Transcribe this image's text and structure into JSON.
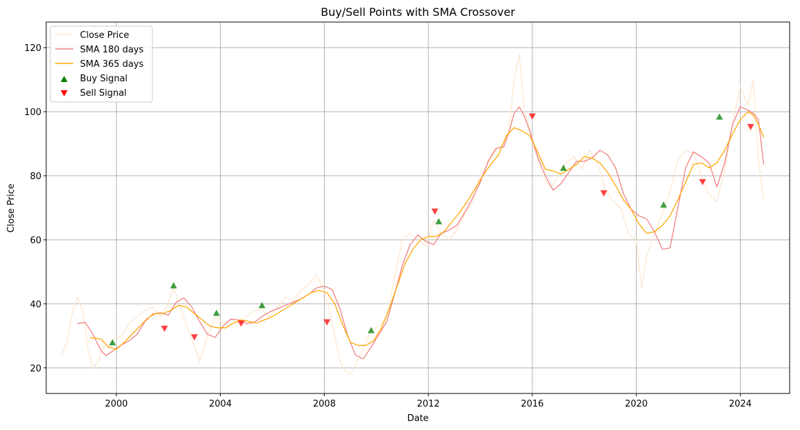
{
  "chart_data": {
    "type": "line",
    "title": "Buy/Sell Points with SMA Crossover",
    "xlabel": "Date",
    "ylabel": "Close Price",
    "xlim": [
      1997.3,
      2025.9
    ],
    "ylim": [
      12,
      128
    ],
    "xticks": [
      2000,
      2004,
      2008,
      2012,
      2016,
      2020,
      2024
    ],
    "xtick_labels": [
      "2000",
      "2004",
      "2008",
      "2012",
      "2016",
      "2020",
      "2024"
    ],
    "yticks": [
      20,
      40,
      60,
      80,
      100,
      120
    ],
    "ytick_labels": [
      "20",
      "40",
      "60",
      "80",
      "100",
      "120"
    ],
    "grid": true,
    "legend_position": "top-left",
    "colors": {
      "close": "#fde8d2",
      "sma180": "#f08080",
      "sma365": "#ffa500",
      "buy": "#008000",
      "sell": "#ff0000",
      "grid": "#b0b0b0"
    },
    "series": [
      {
        "name": "Close Price",
        "x": [
          1997.9,
          1998.1,
          1998.3,
          1998.5,
          1998.7,
          1998.9,
          1999.1,
          1999.3,
          1999.5,
          1999.7,
          1999.9,
          2000.2,
          2000.5,
          2000.8,
          2001.1,
          2001.4,
          2001.7,
          2002.0,
          2002.2,
          2002.5,
          2002.8,
          2003.0,
          2003.2,
          2003.5,
          2003.8,
          2004.1,
          2004.4,
          2004.7,
          2005.0,
          2005.3,
          2005.6,
          2005.9,
          2006.2,
          2006.5,
          2006.8,
          2007.1,
          2007.4,
          2007.7,
          2008.0,
          2008.2,
          2008.4,
          2008.6,
          2008.8,
          2009.0,
          2009.2,
          2009.5,
          2009.8,
          2010.1,
          2010.4,
          2010.7,
          2011.0,
          2011.3,
          2011.6,
          2011.9,
          2012.2,
          2012.5,
          2012.8,
          2013.1,
          2013.4,
          2013.7,
          2014.0,
          2014.3,
          2014.6,
          2014.9,
          2015.1,
          2015.3,
          2015.5,
          2015.7,
          2015.9,
          2016.1,
          2016.4,
          2016.7,
          2017.0,
          2017.3,
          2017.6,
          2017.9,
          2018.2,
          2018.5,
          2018.8,
          2019.1,
          2019.4,
          2019.7,
          2020.0,
          2020.2,
          2020.4,
          2020.7,
          2021.0,
          2021.3,
          2021.6,
          2021.9,
          2022.2,
          2022.5,
          2022.8,
          2023.1,
          2023.4,
          2023.7,
          2024.0,
          2024.3,
          2024.5,
          2024.7,
          2024.9
        ],
        "values": [
          24,
          28,
          37,
          42,
          38,
          26,
          20,
          22,
          27,
          26,
          29,
          30,
          34,
          36,
          38,
          39,
          36,
          40,
          45,
          38,
          31,
          27,
          22,
          30,
          36,
          34,
          35,
          34,
          36,
          38,
          38,
          36,
          39,
          42,
          41,
          44,
          46,
          49,
          44,
          38,
          30,
          22,
          19,
          18,
          21,
          26,
          32,
          33,
          36,
          48,
          60,
          62,
          60,
          58,
          66,
          62,
          60,
          63,
          68,
          72,
          80,
          84,
          88,
          90,
          94,
          110,
          118,
          100,
          95,
          88,
          80,
          76,
          80,
          84,
          86,
          82,
          88,
          84,
          76,
          72,
          70,
          62,
          60,
          45,
          55,
          62,
          68,
          75,
          85,
          88,
          87,
          80,
          74,
          72,
          82,
          96,
          108,
          102,
          110,
          85,
          72
        ]
      },
      {
        "name": "SMA 180 days",
        "x": [
          1998.5,
          1998.8,
          1999.1,
          1999.4,
          1999.6,
          1999.9,
          2000.2,
          2000.5,
          2000.8,
          2001.1,
          2001.4,
          2001.7,
          2002.0,
          2002.3,
          2002.6,
          2002.9,
          2003.2,
          2003.5,
          2003.8,
          2004.1,
          2004.4,
          2004.7,
          2005.0,
          2005.3,
          2005.6,
          2005.9,
          2006.2,
          2006.5,
          2006.8,
          2007.1,
          2007.4,
          2007.7,
          2008.0,
          2008.3,
          2008.6,
          2008.9,
          2009.2,
          2009.5,
          2009.8,
          2010.1,
          2010.4,
          2010.7,
          2011.0,
          2011.3,
          2011.6,
          2011.9,
          2012.2,
          2012.5,
          2012.8,
          2013.1,
          2013.4,
          2013.7,
          2014.0,
          2014.3,
          2014.6,
          2014.9,
          2015.1,
          2015.3,
          2015.5,
          2015.7,
          2015.9,
          2016.2,
          2016.5,
          2016.8,
          2017.1,
          2017.4,
          2017.7,
          2018.0,
          2018.3,
          2018.6,
          2018.9,
          2019.2,
          2019.5,
          2019.8,
          2020.1,
          2020.4,
          2020.7,
          2021.0,
          2021.3,
          2021.6,
          2021.9,
          2022.2,
          2022.5,
          2022.8,
          2023.1,
          2023.4,
          2023.7,
          2024.0,
          2024.3,
          2024.5,
          2024.7,
          2024.9
        ],
        "values": [
          33.8,
          34.2,
          30.5,
          25.5,
          23.8,
          25.5,
          27.2,
          28.5,
          30.5,
          34.5,
          36.8,
          37.2,
          36.5,
          40.5,
          41.8,
          39.0,
          34.5,
          30.5,
          29.5,
          33.0,
          35.2,
          35.0,
          33.8,
          34.2,
          36.0,
          37.5,
          38.5,
          39.5,
          40.5,
          41.5,
          43.0,
          45.0,
          45.5,
          44.5,
          38.5,
          30.0,
          24.0,
          22.8,
          26.5,
          30.5,
          34.5,
          43.0,
          52.0,
          58.5,
          61.5,
          59.5,
          58.5,
          62.0,
          63.0,
          64.5,
          68.5,
          73.0,
          78.0,
          84.5,
          88.5,
          89.0,
          93.5,
          99.5,
          101.5,
          98.5,
          94.0,
          86.0,
          80.0,
          75.5,
          77.5,
          81.0,
          84.5,
          84.5,
          85.5,
          88.0,
          86.5,
          82.5,
          74.5,
          69.5,
          67.5,
          66.5,
          62.5,
          57.0,
          57.5,
          70.0,
          82.5,
          87.5,
          86.0,
          84.0,
          76.5,
          84.0,
          96.0,
          101.5,
          100.5,
          99.5,
          97.5,
          83.5
        ]
      },
      {
        "name": "SMA 365 days",
        "x": [
          1999.0,
          1999.4,
          1999.7,
          2000.0,
          2000.3,
          2000.6,
          2000.9,
          2001.2,
          2001.5,
          2001.8,
          2002.1,
          2002.4,
          2002.7,
          2003.0,
          2003.3,
          2003.6,
          2003.9,
          2004.2,
          2004.5,
          2004.8,
          2005.1,
          2005.4,
          2005.7,
          2006.0,
          2006.3,
          2006.6,
          2006.9,
          2007.2,
          2007.5,
          2007.8,
          2008.1,
          2008.4,
          2008.7,
          2009.0,
          2009.3,
          2009.6,
          2009.9,
          2010.2,
          2010.5,
          2010.8,
          2011.1,
          2011.4,
          2011.7,
          2012.0,
          2012.3,
          2012.6,
          2012.9,
          2013.2,
          2013.5,
          2013.8,
          2014.1,
          2014.4,
          2014.7,
          2015.0,
          2015.3,
          2015.6,
          2015.9,
          2016.2,
          2016.5,
          2016.8,
          2017.1,
          2017.4,
          2017.7,
          2018.0,
          2018.3,
          2018.6,
          2018.9,
          2019.2,
          2019.5,
          2019.8,
          2020.1,
          2020.4,
          2020.7,
          2021.0,
          2021.3,
          2021.6,
          2021.9,
          2022.2,
          2022.5,
          2022.8,
          2023.1,
          2023.4,
          2023.7,
          2024.0,
          2024.3,
          2024.5,
          2024.7,
          2024.9
        ],
        "values": [
          29.5,
          29.0,
          26.5,
          25.8,
          28.0,
          30.5,
          33.0,
          35.5,
          37.0,
          37.0,
          38.0,
          39.5,
          39.0,
          37.0,
          35.0,
          33.0,
          32.5,
          32.5,
          34.0,
          35.0,
          34.5,
          34.0,
          35.0,
          36.0,
          37.5,
          39.0,
          40.5,
          42.0,
          43.5,
          44.2,
          43.5,
          40.0,
          33.5,
          28.0,
          27.0,
          27.0,
          28.5,
          32.5,
          38.5,
          45.5,
          52.5,
          57.0,
          60.0,
          61.0,
          61.0,
          62.5,
          65.5,
          68.5,
          72.0,
          76.0,
          80.0,
          83.5,
          86.5,
          92.5,
          95.0,
          94.0,
          92.5,
          87.5,
          82.0,
          81.5,
          80.5,
          82.0,
          83.5,
          86.0,
          85.5,
          84.0,
          81.0,
          77.0,
          72.5,
          69.5,
          65.0,
          62.0,
          62.5,
          64.5,
          67.5,
          72.5,
          78.0,
          83.5,
          84.0,
          82.5,
          84.0,
          88.0,
          93.0,
          97.5,
          100.0,
          99.0,
          96.0,
          92.0
        ]
      }
    ],
    "buy_signals": {
      "name": "Buy Signal",
      "x": [
        1999.85,
        2002.2,
        2003.85,
        2005.6,
        2009.8,
        2012.4,
        2017.2,
        2021.05,
        2023.2
      ],
      "values": [
        28.0,
        45.8,
        37.2,
        39.6,
        31.8,
        65.8,
        82.5,
        71.0,
        98.5
      ]
    },
    "sell_signals": {
      "name": "Sell Signal",
      "x": [
        2001.85,
        2003.0,
        2004.8,
        2008.1,
        2012.25,
        2016.0,
        2018.75,
        2022.55,
        2024.4
      ],
      "values": [
        32.2,
        29.5,
        33.8,
        34.2,
        68.8,
        98.5,
        74.5,
        78.0,
        95.2
      ]
    }
  }
}
